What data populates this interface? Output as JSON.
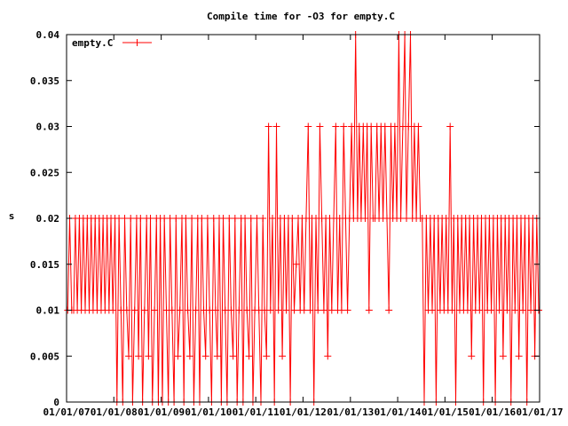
{
  "chart_data": {
    "type": "line",
    "title": "Compile time for -O3 for empty.C",
    "xlabel": "",
    "ylabel": "s",
    "xlim": [
      "2007-01-01",
      "2017-01-01"
    ],
    "ylim": [
      0,
      0.04
    ],
    "y_ticks": [
      0,
      0.005,
      0.01,
      0.015,
      0.02,
      0.025,
      0.03,
      0.035,
      0.04
    ],
    "y_tick_labels": [
      "0",
      "0.005",
      "0.01",
      "0.015",
      "0.02",
      "0.025",
      "0.03",
      "0.035",
      "0.04"
    ],
    "x_ticks": [
      "2007-01-01",
      "2008-01-01",
      "2009-01-01",
      "2010-01-01",
      "2011-01-01",
      "2012-01-01",
      "2013-01-01",
      "2014-01-01",
      "2015-01-01",
      "2016-01-01",
      "2017-01-01"
    ],
    "x_tick_labels": [
      "01/01/07",
      "01/01/08",
      "01/01/09",
      "01/01/10",
      "01/01/11",
      "01/01/12",
      "01/01/13",
      "01/01/14",
      "01/01/15",
      "01/01/16",
      "01/01/17"
    ],
    "grid": false,
    "legend_position": "top-left",
    "series": [
      {
        "name": "empty.C",
        "color": "#ff0000",
        "marker": "plus",
        "x": [
          "2007-01-10",
          "2007-01-25",
          "2007-02-10",
          "2007-02-25",
          "2007-03-10",
          "2007-03-25",
          "2007-04-10",
          "2007-04-25",
          "2007-05-10",
          "2007-05-25",
          "2007-06-10",
          "2007-06-25",
          "2007-07-10",
          "2007-07-25",
          "2007-08-10",
          "2007-08-25",
          "2007-09-10",
          "2007-09-25",
          "2007-10-10",
          "2007-10-25",
          "2007-11-10",
          "2007-11-25",
          "2007-12-10",
          "2007-12-25",
          "2008-01-10",
          "2008-01-25",
          "2008-02-10",
          "2008-02-25",
          "2008-03-10",
          "2008-03-25",
          "2008-04-10",
          "2008-04-25",
          "2008-05-10",
          "2008-05-25",
          "2008-06-10",
          "2008-06-25",
          "2008-07-10",
          "2008-07-25",
          "2008-08-10",
          "2008-08-25",
          "2008-09-10",
          "2008-09-25",
          "2008-10-10",
          "2008-10-25",
          "2008-11-10",
          "2008-11-25",
          "2008-12-10",
          "2008-12-25",
          "2009-01-10",
          "2009-01-25",
          "2009-02-10",
          "2009-02-25",
          "2009-03-10",
          "2009-03-25",
          "2009-04-10",
          "2009-04-25",
          "2009-05-10",
          "2009-05-25",
          "2009-06-10",
          "2009-06-25",
          "2009-07-10",
          "2009-07-25",
          "2009-08-10",
          "2009-08-25",
          "2009-09-10",
          "2009-09-25",
          "2009-10-10",
          "2009-10-25",
          "2009-11-10",
          "2009-11-25",
          "2009-12-10",
          "2009-12-25",
          "2010-01-10",
          "2010-01-25",
          "2010-02-10",
          "2010-02-25",
          "2010-03-10",
          "2010-03-25",
          "2010-04-10",
          "2010-04-25",
          "2010-05-10",
          "2010-05-25",
          "2010-06-10",
          "2010-06-25",
          "2010-07-10",
          "2010-07-25",
          "2010-08-10",
          "2010-08-25",
          "2010-09-10",
          "2010-09-25",
          "2010-10-10",
          "2010-10-25",
          "2010-11-10",
          "2010-11-25",
          "2010-12-10",
          "2010-12-25",
          "2011-01-10",
          "2011-01-25",
          "2011-02-10",
          "2011-02-25",
          "2011-03-10",
          "2011-03-25",
          "2011-04-10",
          "2011-04-25",
          "2011-05-10",
          "2011-05-25",
          "2011-06-10",
          "2011-06-25",
          "2011-07-10",
          "2011-07-25",
          "2011-08-10",
          "2011-08-25",
          "2011-09-10",
          "2011-09-25",
          "2011-10-10",
          "2011-10-25",
          "2011-11-10",
          "2011-11-25",
          "2011-12-10",
          "2011-12-25",
          "2012-01-10",
          "2012-01-25",
          "2012-02-10",
          "2012-02-25",
          "2012-03-10",
          "2012-03-25",
          "2012-04-10",
          "2012-04-25",
          "2012-05-10",
          "2012-05-25",
          "2012-06-10",
          "2012-06-25",
          "2012-07-10",
          "2012-07-25",
          "2012-08-10",
          "2012-08-25",
          "2012-09-10",
          "2012-09-25",
          "2012-10-10",
          "2012-10-25",
          "2012-11-10",
          "2012-11-25",
          "2012-12-10",
          "2012-12-25",
          "2013-01-10",
          "2013-01-25",
          "2013-02-10",
          "2013-02-25",
          "2013-03-10",
          "2013-03-25",
          "2013-04-10",
          "2013-04-25",
          "2013-05-10",
          "2013-05-25",
          "2013-06-10",
          "2013-06-25",
          "2013-07-10",
          "2013-07-25",
          "2013-08-10",
          "2013-08-25",
          "2013-09-10",
          "2013-09-25",
          "2013-10-10",
          "2013-10-25",
          "2013-11-10",
          "2013-11-25",
          "2013-12-10",
          "2013-12-25",
          "2014-01-10",
          "2014-01-25",
          "2014-02-10",
          "2014-02-25",
          "2014-03-10",
          "2014-03-25",
          "2014-04-10",
          "2014-04-25",
          "2014-05-10",
          "2014-05-25",
          "2014-06-10",
          "2014-06-25",
          "2014-07-10",
          "2014-07-25",
          "2014-08-10",
          "2014-08-25",
          "2014-09-10",
          "2014-09-25",
          "2014-10-10",
          "2014-10-25",
          "2014-11-10",
          "2014-11-25",
          "2014-12-10",
          "2014-12-25",
          "2015-01-10",
          "2015-01-25",
          "2015-02-10",
          "2015-02-25",
          "2015-03-10",
          "2015-03-25",
          "2015-04-10",
          "2015-04-25",
          "2015-05-10",
          "2015-05-25",
          "2015-06-10",
          "2015-06-25",
          "2015-07-10",
          "2015-07-25",
          "2015-08-10",
          "2015-08-25",
          "2015-09-10",
          "2015-09-25",
          "2015-10-10",
          "2015-10-25",
          "2015-11-10",
          "2015-11-25",
          "2015-12-10",
          "2015-12-25",
          "2016-01-10",
          "2016-01-25",
          "2016-02-10",
          "2016-02-25",
          "2016-03-10",
          "2016-03-25",
          "2016-04-10",
          "2016-04-25",
          "2016-05-10",
          "2016-05-25",
          "2016-06-10",
          "2016-06-25",
          "2016-07-10",
          "2016-07-25",
          "2016-08-10",
          "2016-08-25",
          "2016-09-10",
          "2016-09-25",
          "2016-10-10",
          "2016-10-25",
          "2016-11-10",
          "2016-11-25",
          "2016-12-10",
          "2016-12-25"
        ],
        "y": [
          0.01,
          0.02,
          0.01,
          0.01,
          0.02,
          0.01,
          0.02,
          0.01,
          0.02,
          0.01,
          0.02,
          0.01,
          0.02,
          0.01,
          0.02,
          0.01,
          0.02,
          0.01,
          0.02,
          0.01,
          0.02,
          0.01,
          0.02,
          0.01,
          0.02,
          0,
          0.02,
          0.01,
          0,
          0.02,
          0.01,
          0.005,
          0.02,
          0,
          0.01,
          0.02,
          0.005,
          0.02,
          0,
          0.01,
          0.02,
          0.005,
          0.02,
          0,
          0.01,
          0.02,
          0,
          0.02,
          0,
          0.02,
          0.01,
          0,
          0.02,
          0.01,
          0,
          0.02,
          0.005,
          0.01,
          0.02,
          0,
          0.02,
          0.01,
          0.005,
          0.02,
          0,
          0.01,
          0.02,
          0,
          0.02,
          0.01,
          0.005,
          0.02,
          0.01,
          0,
          0.02,
          0.01,
          0.005,
          0.02,
          0,
          0.02,
          0.01,
          0,
          0.02,
          0.01,
          0.005,
          0.02,
          0,
          0.01,
          0.02,
          0,
          0.02,
          0.01,
          0.005,
          0.02,
          0,
          0.01,
          0.02,
          0.01,
          0,
          0.02,
          0.01,
          0.005,
          0.03,
          0.01,
          0.02,
          0,
          0.03,
          0.01,
          0.02,
          0.005,
          0.02,
          0.01,
          0.02,
          0,
          0.02,
          0.01,
          0.015,
          0.02,
          0.01,
          0.02,
          0.01,
          0.02,
          0.03,
          0.01,
          0.02,
          0,
          0.02,
          0.01,
          0.03,
          0.02,
          0.01,
          0.02,
          0.005,
          0.02,
          0.01,
          0.02,
          0.03,
          0.01,
          0.02,
          0.01,
          0.03,
          0.02,
          0.01,
          0.02,
          0.03,
          0.02,
          0.04,
          0.02,
          0.03,
          0.02,
          0.03,
          0.02,
          0.03,
          0.01,
          0.03,
          0.02,
          0.02,
          0.03,
          0.02,
          0.03,
          0.02,
          0.03,
          0.02,
          0.01,
          0.03,
          0.02,
          0.03,
          0.02,
          0.04,
          0.02,
          0.03,
          0.04,
          0.02,
          0.03,
          0.04,
          0.02,
          0.03,
          0.02,
          0.03,
          0.02,
          0.02,
          0,
          0.02,
          0.01,
          0.02,
          0.01,
          0.02,
          0,
          0.02,
          0.01,
          0.02,
          0.01,
          0.02,
          0.01,
          0.03,
          0.01,
          0.02,
          0,
          0.02,
          0.01,
          0.02,
          0.01,
          0.02,
          0.01,
          0.02,
          0.005,
          0.02,
          0.01,
          0.02,
          0.01,
          0.02,
          0,
          0.02,
          0.01,
          0.02,
          0.01,
          0.02,
          0,
          0.02,
          0.01,
          0.02,
          0.005,
          0.02,
          0.01,
          0.02,
          0,
          0.02,
          0.01,
          0.02,
          0.005,
          0.02,
          0.01,
          0.02,
          0,
          0.02,
          0.01,
          0.02,
          0.005,
          0.02,
          0.01
        ]
      }
    ]
  }
}
